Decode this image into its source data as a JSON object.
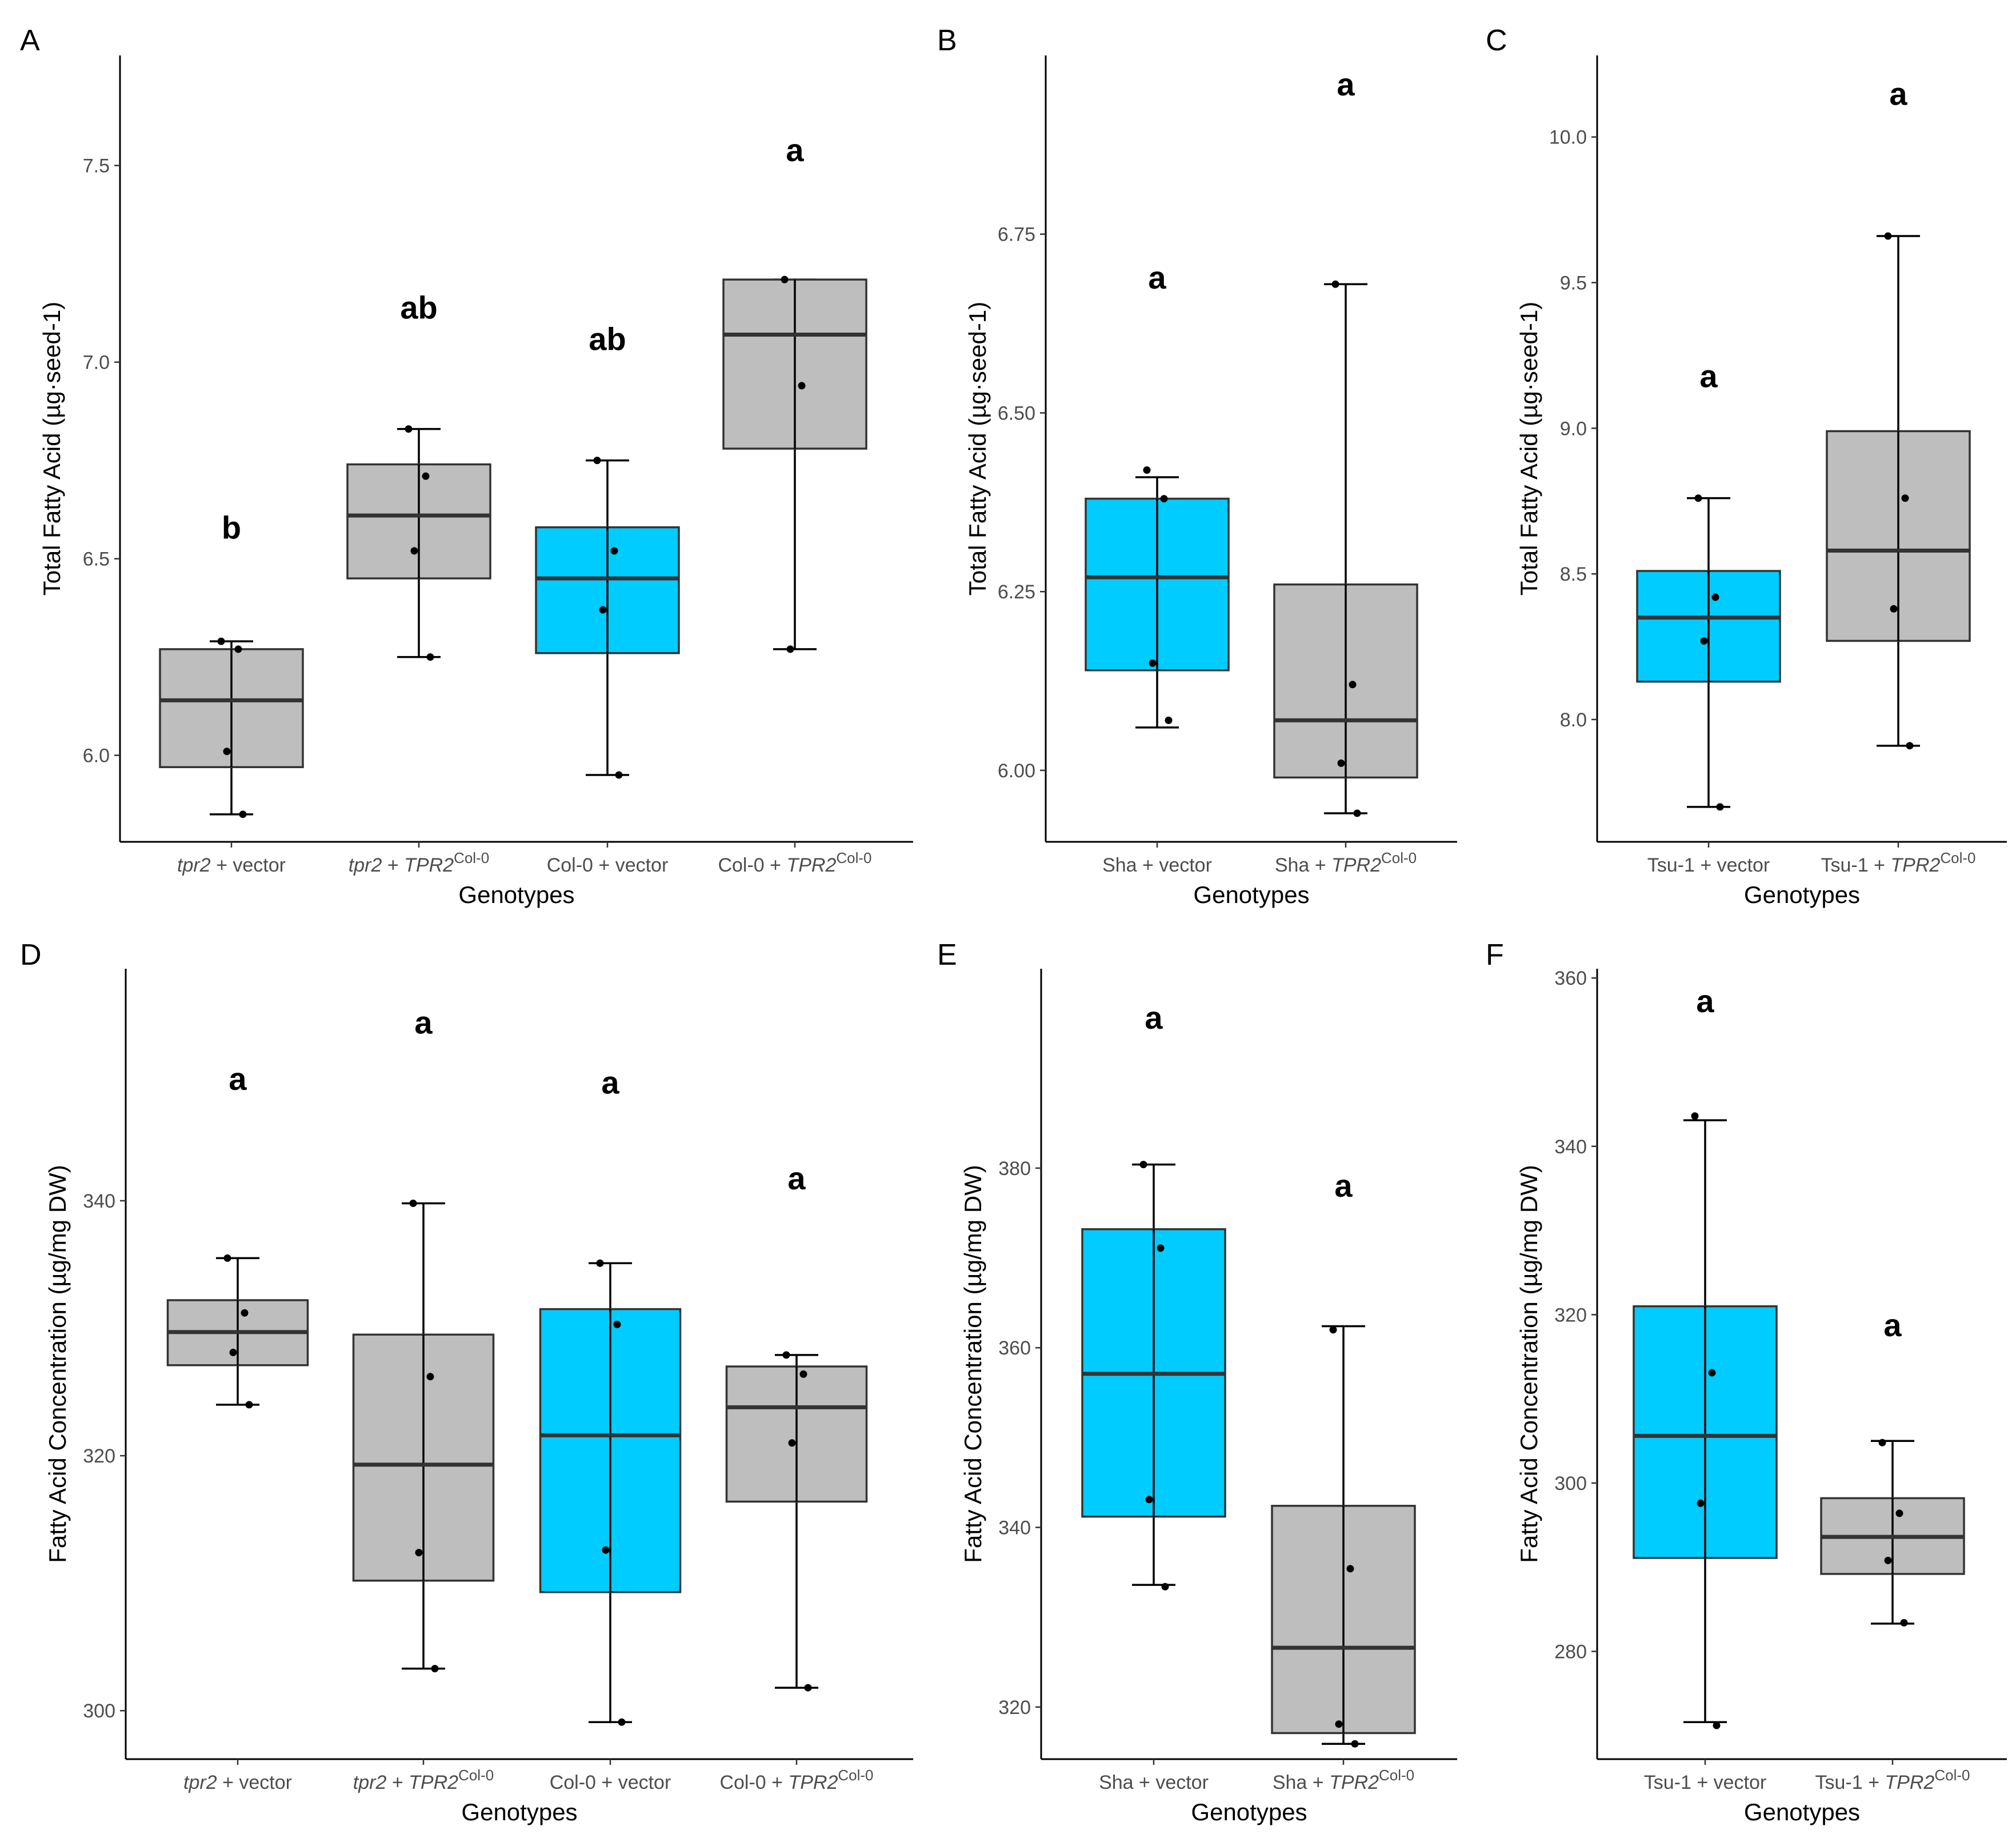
{
  "colors": {
    "vector": "#00CCFF",
    "default": "#BEBEBE",
    "stroke": "#333333"
  },
  "chart_data": [
    {
      "panel": "A",
      "type": "box",
      "ylabel": "Total Fatty Acid (µg·seed-1)",
      "xlabel": "Genotypes",
      "ylim": [
        5.78,
        7.78
      ],
      "yticks": [
        6.0,
        6.5,
        7.0,
        7.5
      ],
      "ytick_labels": [
        "6.0",
        "6.5",
        "7.0",
        "7.5"
      ],
      "groups": [
        {
          "name_parts": [
            [
              "tpr2",
              "i"
            ],
            [
              " + vector",
              ""
            ]
          ],
          "fill": "default",
          "q1": 5.97,
          "median": 6.14,
          "q3": 6.27,
          "whisker_low": 5.85,
          "whisker_high": 6.29,
          "points": [
            6.29,
            6.27,
            6.01,
            5.85
          ],
          "letter": "b",
          "letter_y": 6.58
        },
        {
          "name_parts": [
            [
              "tpr2",
              "i"
            ],
            [
              " + ",
              ""
            ],
            [
              "TPR2",
              "i"
            ],
            [
              "Col-0",
              "s"
            ]
          ],
          "fill": "default",
          "q1": 6.45,
          "median": 6.61,
          "q3": 6.74,
          "whisker_low": 6.25,
          "whisker_high": 6.83,
          "points": [
            6.83,
            6.71,
            6.52,
            6.25
          ],
          "letter": "ab",
          "letter_y": 7.14
        },
        {
          "name_parts": [
            [
              "Col-0 + vector",
              ""
            ]
          ],
          "fill": "vector",
          "q1": 6.26,
          "median": 6.45,
          "q3": 6.58,
          "whisker_low": 5.95,
          "whisker_high": 6.75,
          "points": [
            6.75,
            6.52,
            6.37,
            5.95
          ],
          "letter": "ab",
          "letter_y": 7.06
        },
        {
          "name_parts": [
            [
              "Col-0 + ",
              ""
            ],
            [
              "TPR2",
              "i"
            ],
            [
              "Col-0",
              "s"
            ]
          ],
          "fill": "default",
          "q1": 6.78,
          "median": 7.07,
          "q3": 7.21,
          "whisker_low": 6.27,
          "whisker_high": 7.21,
          "points": [
            7.21,
            6.94,
            6.27
          ],
          "letter": "a",
          "letter_y": 7.54
        }
      ]
    },
    {
      "panel": "B",
      "type": "box",
      "ylabel": "Total Fatty Acid (µg·seed-1)",
      "xlabel": "Genotypes",
      "ylim": [
        5.9,
        7.0
      ],
      "yticks": [
        6.0,
        6.25,
        6.5,
        6.75
      ],
      "ytick_labels": [
        "6.00",
        "6.25",
        "6.50",
        "6.75"
      ],
      "groups": [
        {
          "name_parts": [
            [
              "Sha + vector",
              ""
            ]
          ],
          "fill": "vector",
          "q1": 6.14,
          "median": 6.27,
          "q3": 6.38,
          "whisker_low": 6.06,
          "whisker_high": 6.41,
          "points": [
            6.42,
            6.38,
            6.15,
            6.07
          ],
          "letter": "a",
          "letter_y": 6.69
        },
        {
          "name_parts": [
            [
              "Sha + ",
              ""
            ],
            [
              "TPR2",
              "i"
            ],
            [
              "Col-0",
              "s"
            ]
          ],
          "fill": "default",
          "q1": 5.99,
          "median": 6.07,
          "q3": 6.26,
          "whisker_low": 5.94,
          "whisker_high": 6.68,
          "points": [
            6.68,
            6.12,
            6.01,
            5.94
          ],
          "letter": "a",
          "letter_y": 6.96
        }
      ]
    },
    {
      "panel": "C",
      "type": "box",
      "ylabel": "Total Fatty Acid (µg·seed-1)",
      "xlabel": "Genotypes",
      "ylim": [
        7.58,
        10.28
      ],
      "yticks": [
        8.0,
        8.5,
        9.0,
        9.5,
        10.0
      ],
      "ytick_labels": [
        "8.0",
        "8.5",
        "9.0",
        "9.5",
        "10.0"
      ],
      "groups": [
        {
          "name_parts": [
            [
              "Tsu-1 + vector",
              ""
            ]
          ],
          "fill": "vector",
          "q1": 8.13,
          "median": 8.35,
          "q3": 8.51,
          "whisker_low": 7.7,
          "whisker_high": 8.76,
          "points": [
            8.76,
            8.42,
            8.27,
            7.7
          ],
          "letter": "a",
          "letter_y": 9.18
        },
        {
          "name_parts": [
            [
              "Tsu-1 + ",
              ""
            ],
            [
              "TPR2",
              "i"
            ],
            [
              "Col-0",
              "s"
            ]
          ],
          "fill": "default",
          "q1": 8.27,
          "median": 8.58,
          "q3": 8.99,
          "whisker_low": 7.91,
          "whisker_high": 9.66,
          "points": [
            9.66,
            8.76,
            8.38,
            7.91
          ],
          "letter": "a",
          "letter_y": 10.15
        }
      ]
    },
    {
      "panel": "D",
      "type": "box",
      "ylabel": "Fatty Acid Concentration (µg/mg DW)",
      "xlabel": "Genotypes",
      "ylim": [
        296.2,
        358.2
      ],
      "yticks": [
        300,
        320,
        340
      ],
      "ytick_labels": [
        "300",
        "320",
        "340"
      ],
      "groups": [
        {
          "name_parts": [
            [
              "tpr2",
              "i"
            ],
            [
              " + vector",
              ""
            ]
          ],
          "fill": "default",
          "q1": 327.1,
          "median": 329.7,
          "q3": 332.2,
          "whisker_low": 324.0,
          "whisker_high": 335.5,
          "points": [
            335.5,
            331.2,
            328.1,
            324.0
          ],
          "letter": "a",
          "letter_y": 349.6
        },
        {
          "name_parts": [
            [
              "tpr2",
              "i"
            ],
            [
              " + ",
              ""
            ],
            [
              "TPR2",
              "i"
            ],
            [
              "Col-0",
              "s"
            ]
          ],
          "fill": "default",
          "q1": 310.2,
          "median": 319.3,
          "q3": 329.5,
          "whisker_low": 303.3,
          "whisker_high": 339.8,
          "points": [
            339.8,
            326.2,
            312.4,
            303.3
          ],
          "letter": "a",
          "letter_y": 354.0
        },
        {
          "name_parts": [
            [
              "Col-0 + vector",
              ""
            ]
          ],
          "fill": "vector",
          "q1": 309.3,
          "median": 321.6,
          "q3": 331.5,
          "whisker_low": 299.1,
          "whisker_high": 335.1,
          "points": [
            335.1,
            330.3,
            312.6,
            299.1
          ],
          "letter": "a",
          "letter_y": 349.3
        },
        {
          "name_parts": [
            [
              "Col-0 + ",
              ""
            ],
            [
              "TPR2",
              "i"
            ],
            [
              "Col-0",
              "s"
            ]
          ],
          "fill": "default",
          "q1": 316.4,
          "median": 323.8,
          "q3": 327.0,
          "whisker_low": 301.8,
          "whisker_high": 327.9,
          "points": [
            327.9,
            326.4,
            321.0,
            301.8
          ],
          "letter": "a",
          "letter_y": 341.8
        }
      ]
    },
    {
      "panel": "E",
      "type": "box",
      "ylabel": "Fatty Acid Concentration (µg/mg DW)",
      "xlabel": "Genotypes",
      "ylim": [
        314.2,
        402.2
      ],
      "yticks": [
        320,
        340,
        360,
        380
      ],
      "ytick_labels": [
        "320",
        "340",
        "360",
        "380"
      ],
      "groups": [
        {
          "name_parts": [
            [
              "Sha + vector",
              ""
            ]
          ],
          "fill": "vector",
          "q1": 341.2,
          "median": 357.1,
          "q3": 373.2,
          "whisker_low": 333.6,
          "whisker_high": 380.4,
          "points": [
            380.4,
            371.1,
            343.1,
            333.4
          ],
          "letter": "a",
          "letter_y": 396.8
        },
        {
          "name_parts": [
            [
              "Sha + ",
              ""
            ],
            [
              "TPR2",
              "i"
            ],
            [
              "Col-0",
              "s"
            ]
          ],
          "fill": "default",
          "q1": 317.1,
          "median": 326.6,
          "q3": 342.4,
          "whisker_low": 315.9,
          "whisker_high": 362.4,
          "points": [
            362.0,
            335.4,
            318.1,
            315.9
          ],
          "letter": "a",
          "letter_y": 378.1
        }
      ]
    },
    {
      "panel": "F",
      "type": "box",
      "ylabel": "Fatty Acid Concentration (µg/mg DW)",
      "xlabel": "Genotypes",
      "ylim": [
        267.2,
        361.1
      ],
      "yticks": [
        280,
        300,
        320,
        340,
        360
      ],
      "ytick_labels": [
        "280",
        "300",
        "320",
        "340",
        "360"
      ],
      "groups": [
        {
          "name_parts": [
            [
              "Tsu-1 + vector",
              ""
            ]
          ],
          "fill": "vector",
          "q1": 291.1,
          "median": 305.6,
          "q3": 321.0,
          "whisker_low": 271.6,
          "whisker_high": 343.1,
          "points": [
            343.6,
            313.1,
            297.6,
            271.2
          ],
          "letter": "a",
          "letter_y": 357.3
        },
        {
          "name_parts": [
            [
              "Tsu-1 + ",
              ""
            ],
            [
              "TPR2",
              "i"
            ],
            [
              "Col-0",
              "s"
            ]
          ],
          "fill": "default",
          "q1": 289.2,
          "median": 293.6,
          "q3": 298.2,
          "whisker_low": 283.3,
          "whisker_high": 305.0,
          "points": [
            304.8,
            296.4,
            290.8,
            283.4
          ],
          "letter": "a",
          "letter_y": 318.8
        }
      ]
    }
  ]
}
